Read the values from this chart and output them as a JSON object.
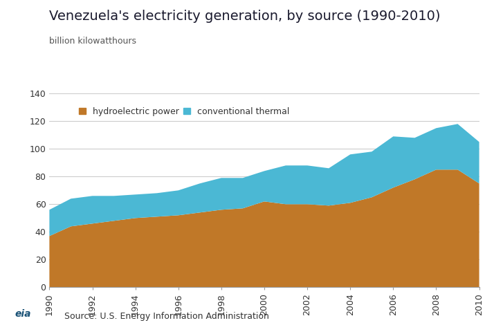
{
  "title": "Venezuela's electricity generation, by source (1990-2010)",
  "subtitle": "billion kilowatthours",
  "source": "Source: U.S. Energy Information Administration",
  "years": [
    1990,
    1991,
    1992,
    1993,
    1994,
    1995,
    1996,
    1997,
    1998,
    1999,
    2000,
    2001,
    2002,
    2003,
    2004,
    2005,
    2006,
    2007,
    2008,
    2009,
    2010
  ],
  "hydro": [
    37,
    44,
    46,
    48,
    50,
    51,
    52,
    54,
    56,
    57,
    62,
    60,
    60,
    59,
    61,
    65,
    72,
    78,
    85,
    85,
    75
  ],
  "thermal": [
    19,
    20,
    20,
    18,
    17,
    17,
    18,
    21,
    23,
    22,
    22,
    28,
    28,
    27,
    35,
    33,
    37,
    30,
    30,
    33,
    30
  ],
  "hydro_color": "#C07828",
  "thermal_color": "#4BB8D4",
  "background_color": "#FFFFFF",
  "grid_color": "#CCCCCC",
  "ylim": [
    0,
    140
  ],
  "yticks": [
    0,
    20,
    40,
    60,
    80,
    100,
    120,
    140
  ],
  "title_fontsize": 14,
  "subtitle_fontsize": 9,
  "tick_fontsize": 9,
  "legend_fontsize": 9,
  "source_fontsize": 9,
  "title_color": "#1a1a2e",
  "subtitle_color": "#555555"
}
